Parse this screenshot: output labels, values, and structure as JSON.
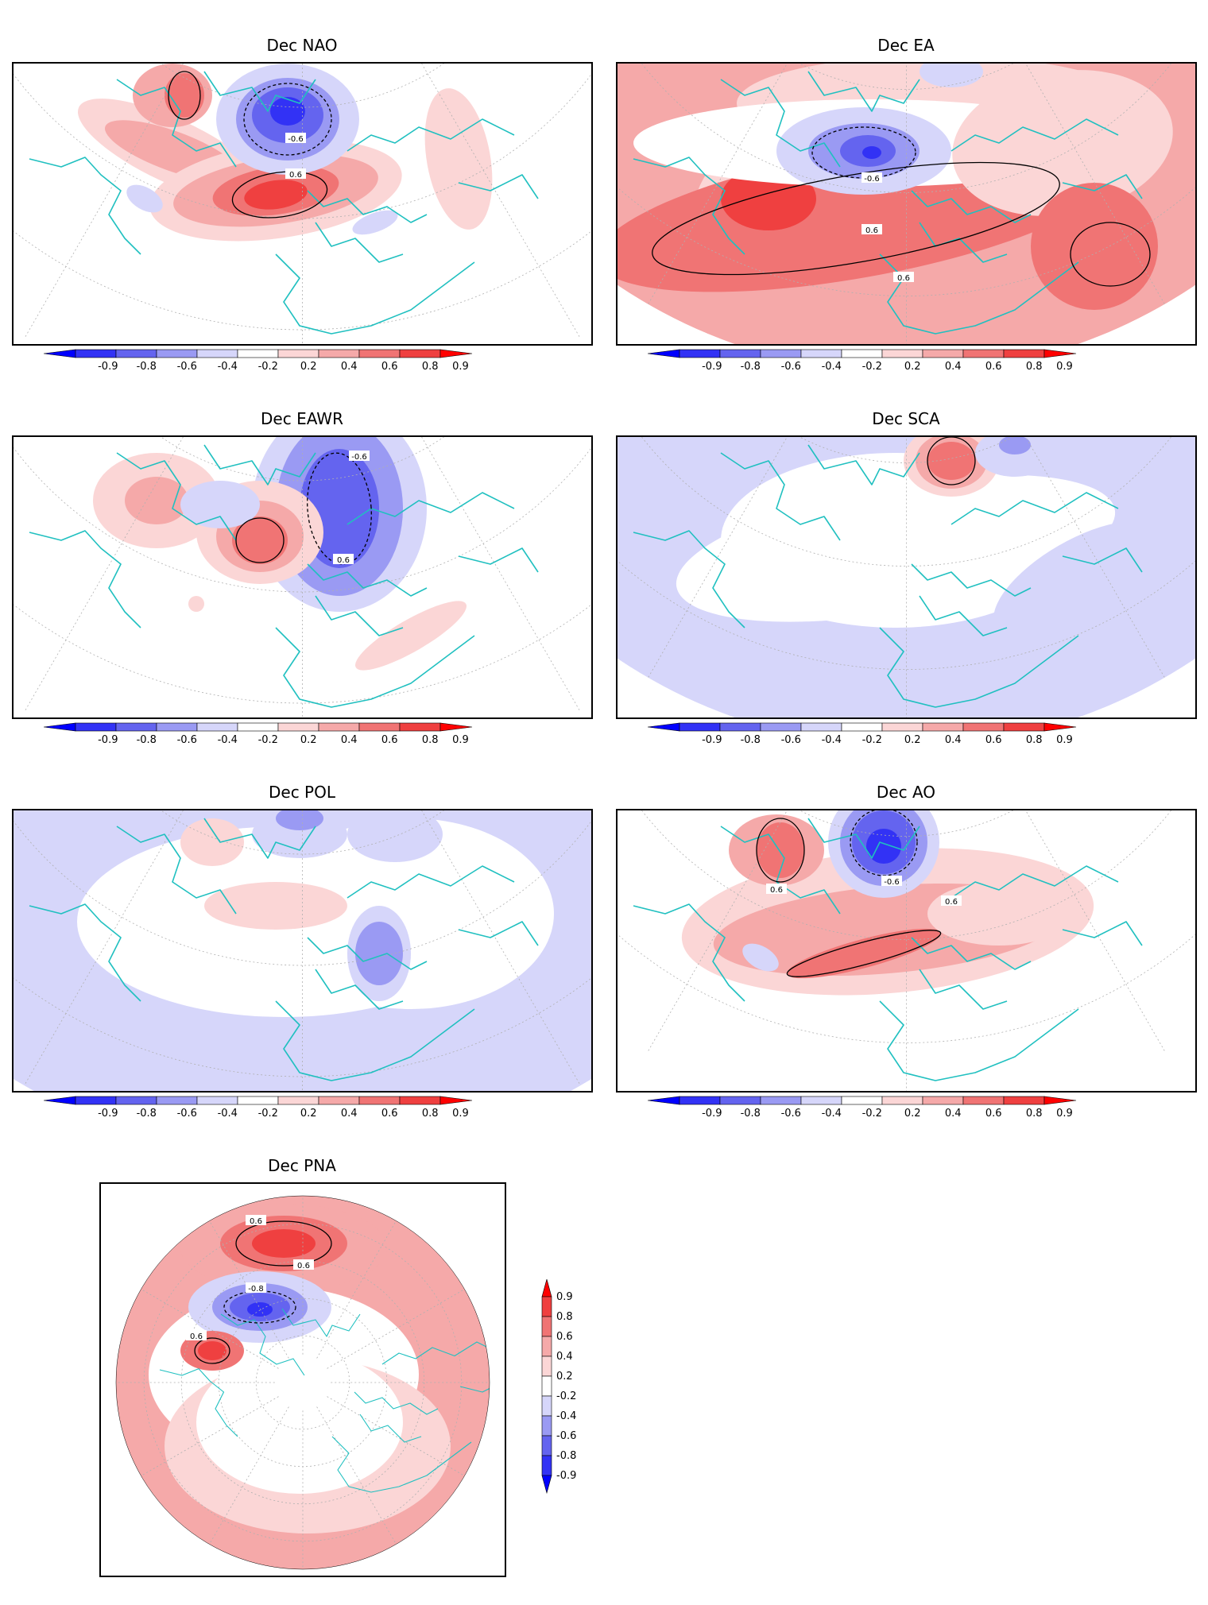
{
  "panels": [
    {
      "id": "nao",
      "title": "Dec NAO",
      "contour_labels": [
        "-0.6",
        "0.6"
      ]
    },
    {
      "id": "ea",
      "title": "Dec EA",
      "contour_labels": [
        "-0.6",
        "0.6",
        "0.6"
      ]
    },
    {
      "id": "eawr",
      "title": "Dec EAWR",
      "contour_labels": [
        "-0.6",
        "0.6"
      ]
    },
    {
      "id": "sca",
      "title": "Dec SCA",
      "contour_labels": []
    },
    {
      "id": "pol",
      "title": "Dec POL",
      "contour_labels": []
    },
    {
      "id": "ao",
      "title": "Dec AO",
      "contour_labels": [
        "-0.6",
        "0.6",
        "0.6"
      ]
    },
    {
      "id": "pna",
      "title": "Dec PNA",
      "contour_labels": [
        "0.6",
        "0.6",
        "-0.8",
        "0.6"
      ]
    }
  ],
  "colorbar": {
    "tick_labels": [
      "-0.9",
      "-0.8",
      "-0.6",
      "-0.4",
      "-0.2",
      "0.2",
      "0.4",
      "0.6",
      "0.8",
      "0.9"
    ],
    "vertical_tick_labels": [
      "0.9",
      "0.8",
      "0.6",
      "0.4",
      "0.2",
      "-0.2",
      "-0.4",
      "-0.6",
      "-0.8",
      "-0.9"
    ],
    "colors": {
      "neg_extreme": "#0000ff",
      "neg_09": "#3232f5",
      "neg_08": "#6464ef",
      "neg_06": "#9a9af3",
      "neg_04": "#d6d6fa",
      "neutral": "#ffffff",
      "pos_02": "#fbd6d6",
      "pos_04": "#f5a9a9",
      "pos_06": "#f07474",
      "pos_08": "#ef4040",
      "pos_extreme": "#ff0000"
    }
  },
  "map_colors": {
    "coast": "#20c0c0",
    "grid": "#b0b0b0",
    "contour": "#000000"
  }
}
